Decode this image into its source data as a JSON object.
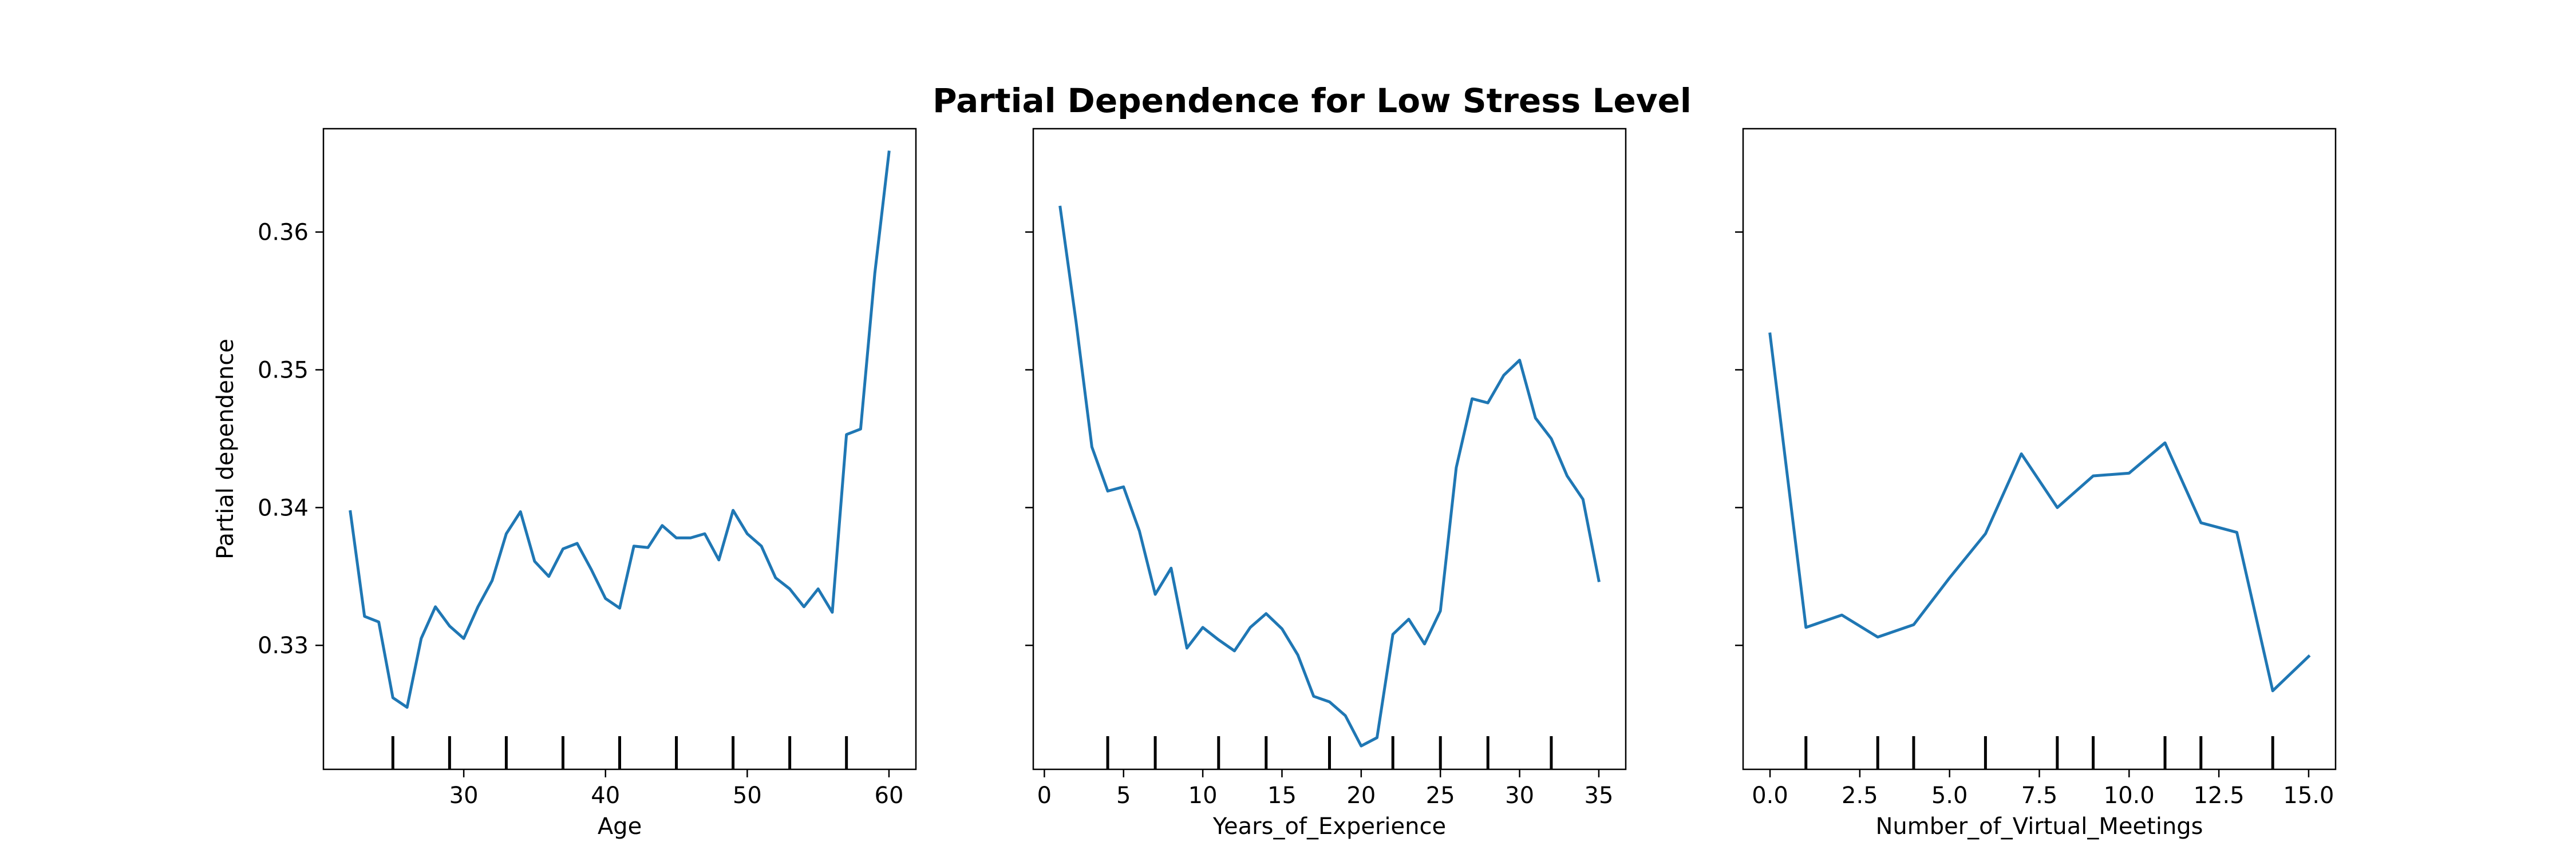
{
  "figure": {
    "title": "Partial Dependence for Low Stress Level",
    "line_color": "#1f77b4",
    "axes_color": "#000000",
    "background": "#ffffff"
  },
  "chart_data": [
    {
      "type": "line",
      "xlabel": "Age",
      "ylabel": "Partial dependence",
      "xlim": [
        20.1,
        61.9
      ],
      "ylim": [
        0.321,
        0.3675
      ],
      "xticks": [
        30,
        40,
        50,
        60
      ],
      "xtick_labels": [
        "30",
        "40",
        "50",
        "60"
      ],
      "yticks": [
        0.33,
        0.34,
        0.35,
        0.36
      ],
      "ytick_labels": [
        "0.33",
        "0.34",
        "0.35",
        "0.36"
      ],
      "x": [
        22,
        23,
        24,
        25,
        26,
        27,
        28,
        29,
        30,
        31,
        32,
        33,
        34,
        35,
        36,
        37,
        38,
        39,
        40,
        41,
        42,
        43,
        44,
        45,
        46,
        47,
        48,
        49,
        50,
        51,
        52,
        53,
        54,
        55,
        56,
        57,
        58,
        59,
        60
      ],
      "y": [
        0.3397,
        0.3321,
        0.3317,
        0.3262,
        0.3255,
        0.3305,
        0.3328,
        0.3314,
        0.3305,
        0.3328,
        0.3347,
        0.3381,
        0.3397,
        0.3361,
        0.335,
        0.337,
        0.3374,
        0.3355,
        0.3334,
        0.3327,
        0.3372,
        0.3371,
        0.3387,
        0.3378,
        0.3378,
        0.3381,
        0.3362,
        0.3398,
        0.3381,
        0.3372,
        0.3349,
        0.3341,
        0.3328,
        0.3341,
        0.3324,
        0.3453,
        0.3457,
        0.357,
        0.3658
      ],
      "deciles": [
        25,
        29,
        33,
        37,
        41,
        45,
        49,
        53,
        57
      ],
      "grid": false
    },
    {
      "type": "line",
      "xlabel": "Years_of_Experience",
      "ylabel": "",
      "xlim": [
        -0.7,
        36.7
      ],
      "ylim": [
        0.321,
        0.3675
      ],
      "xticks": [
        0,
        5,
        10,
        15,
        20,
        25,
        30,
        35
      ],
      "xtick_labels": [
        "0",
        "5",
        "10",
        "15",
        "20",
        "25",
        "30",
        "35"
      ],
      "yticks": [
        0.33,
        0.34,
        0.35,
        0.36
      ],
      "ytick_labels": [
        "",
        "",
        "",
        ""
      ],
      "x": [
        1,
        2,
        3,
        4,
        5,
        6,
        7,
        8,
        9,
        10,
        11,
        12,
        13,
        14,
        15,
        16,
        17,
        18,
        19,
        20,
        21,
        22,
        23,
        24,
        25,
        26,
        27,
        28,
        29,
        30,
        31,
        32,
        33,
        34,
        35
      ],
      "y": [
        0.3618,
        0.3535,
        0.3444,
        0.3412,
        0.3415,
        0.3383,
        0.3337,
        0.3356,
        0.3298,
        0.3313,
        0.3304,
        0.3296,
        0.3313,
        0.3323,
        0.3312,
        0.3293,
        0.3263,
        0.3259,
        0.3249,
        0.3227,
        0.3233,
        0.3308,
        0.3319,
        0.3301,
        0.3325,
        0.3429,
        0.3479,
        0.3476,
        0.3496,
        0.3507,
        0.3465,
        0.345,
        0.3423,
        0.3406,
        0.3347
      ],
      "deciles": [
        4,
        7,
        11,
        14,
        18,
        22,
        25,
        28,
        32
      ],
      "grid": false
    },
    {
      "type": "line",
      "xlabel": "Number_of_Virtual_Meetings",
      "ylabel": "",
      "xlim": [
        -0.75,
        15.75
      ],
      "ylim": [
        0.321,
        0.3675
      ],
      "xticks": [
        0,
        2.5,
        5,
        7.5,
        10,
        12.5,
        15
      ],
      "xtick_labels": [
        "0.0",
        "2.5",
        "5.0",
        "7.5",
        "10.0",
        "12.5",
        "15.0"
      ],
      "yticks": [
        0.33,
        0.34,
        0.35,
        0.36
      ],
      "ytick_labels": [
        "",
        "",
        "",
        ""
      ],
      "x": [
        0,
        1,
        2,
        3,
        4,
        5,
        6,
        7,
        8,
        9,
        10,
        11,
        12,
        13,
        14,
        15
      ],
      "y": [
        0.3526,
        0.3313,
        0.3322,
        0.3306,
        0.3315,
        0.3349,
        0.3381,
        0.3439,
        0.34,
        0.3423,
        0.3425,
        0.3447,
        0.3389,
        0.3382,
        0.3267,
        0.3292
      ],
      "deciles": [
        1,
        3,
        4,
        6,
        8,
        9,
        11,
        12,
        14
      ],
      "grid": false
    }
  ]
}
